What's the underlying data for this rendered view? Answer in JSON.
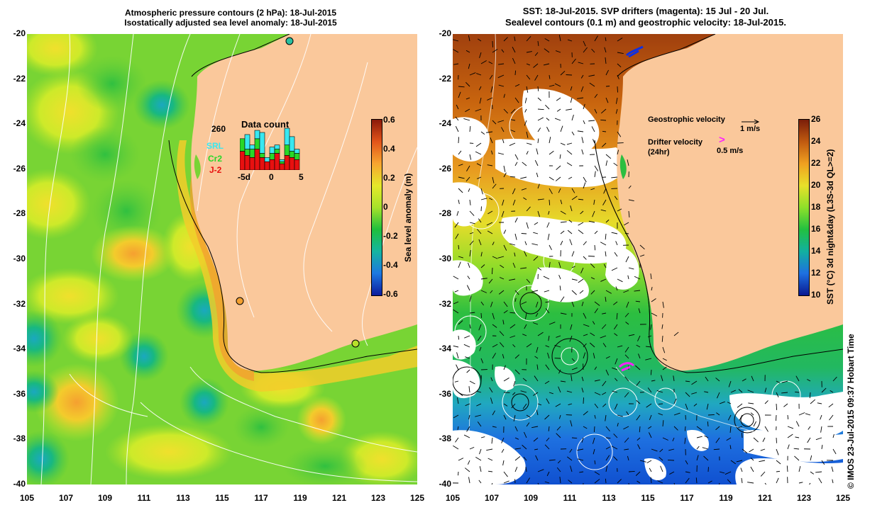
{
  "left_panel": {
    "title_line1": "Atmospheric pressure contours (2 hPa): 18-Jul-2015",
    "title_line2": "Isostatically adjusted sea level anomaly: 18-Jul-2015",
    "colorbar": {
      "label": "Sea level anomaly (m)",
      "ticks": [
        "0.6",
        "0.4",
        "0.2",
        "0",
        "-0.2",
        "-0.4",
        "-0.6"
      ],
      "colors": [
        "#8b1a0a",
        "#e2541a",
        "#f7a530",
        "#e5e82a",
        "#a6e22a",
        "#1fbf3c",
        "#15b5a0",
        "#1e78e0",
        "#0c1a9c"
      ]
    },
    "inset": {
      "title": "Data count",
      "total": "260",
      "legend": [
        {
          "name": "SRL",
          "color": "#38e8f0"
        },
        {
          "name": "Cr2",
          "color": "#28d828"
        },
        {
          "name": "J-2",
          "color": "#e81010"
        }
      ],
      "x_ticks": [
        "-5d",
        "0",
        "5"
      ],
      "bars": [
        {
          "j2": 0.45,
          "cr2": 0.3,
          "srl": 0.0
        },
        {
          "j2": 0.35,
          "cr2": 0.15,
          "srl": 0.35
        },
        {
          "j2": 0.3,
          "cr2": 0.2,
          "srl": 0.1
        },
        {
          "j2": 0.5,
          "cr2": 0.25,
          "srl": 0.2
        },
        {
          "j2": 0.3,
          "cr2": 0.1,
          "srl": 0.5
        },
        {
          "j2": 0.2,
          "cr2": 0.0,
          "srl": 0.1
        },
        {
          "j2": 0.25,
          "cr2": 0.15,
          "srl": 0.15
        },
        {
          "j2": 0.4,
          "cr2": 0.1,
          "srl": 0.1
        },
        {
          "j2": 0.15,
          "cr2": 0.05,
          "srl": 0.05
        },
        {
          "j2": 0.35,
          "cr2": 0.25,
          "srl": 0.4
        },
        {
          "j2": 0.3,
          "cr2": 0.15,
          "srl": 0.35
        },
        {
          "j2": 0.25,
          "cr2": 0.15,
          "srl": 0.1
        }
      ]
    }
  },
  "right_panel": {
    "title_line1": "SST: 18-Jul-2015. SVP drifters (magenta): 15 Jul - 20 Jul.",
    "title_line2": "Sealevel contours (0.1 m) and geostrophic velocity: 18-Jul-2015.",
    "colorbar": {
      "label": "SST (°C) 3d night&day (L3S-3d QL>=2)",
      "ticks": [
        "26",
        "24",
        "22",
        "20",
        "18",
        "16",
        "14",
        "12",
        "10"
      ],
      "colors": [
        "#7a1e0a",
        "#c05a10",
        "#f0a020",
        "#e8e02a",
        "#8ee02a",
        "#22c040",
        "#12b0a0",
        "#1e70e0",
        "#0a1890"
      ]
    },
    "legend": {
      "geostrophic_label": "Geostrophic velocity",
      "geostrophic_scale": "1 m/s",
      "drifter_label": "Drifter velocity",
      "drifter_period": "(24hr)",
      "drifter_scale": "0.5 m/s",
      "drifter_symbol": ">"
    },
    "credit": "© IMOS 23-Jul-2015 09:37 Hobart Time"
  },
  "axes": {
    "lat_ticks": [
      "-20",
      "-22",
      "-24",
      "-26",
      "-28",
      "-30",
      "-32",
      "-34",
      "-36",
      "-38",
      "-40"
    ],
    "lon_ticks": [
      "105",
      "107",
      "109",
      "111",
      "113",
      "115",
      "117",
      "119",
      "121",
      "123",
      "125"
    ]
  },
  "colors": {
    "land": "#fac89b",
    "ocean_base_left": "#7fd832",
    "ocean_base_right": "#36c248",
    "cloud": "#ffffff",
    "drifter": "#ff20ff"
  }
}
